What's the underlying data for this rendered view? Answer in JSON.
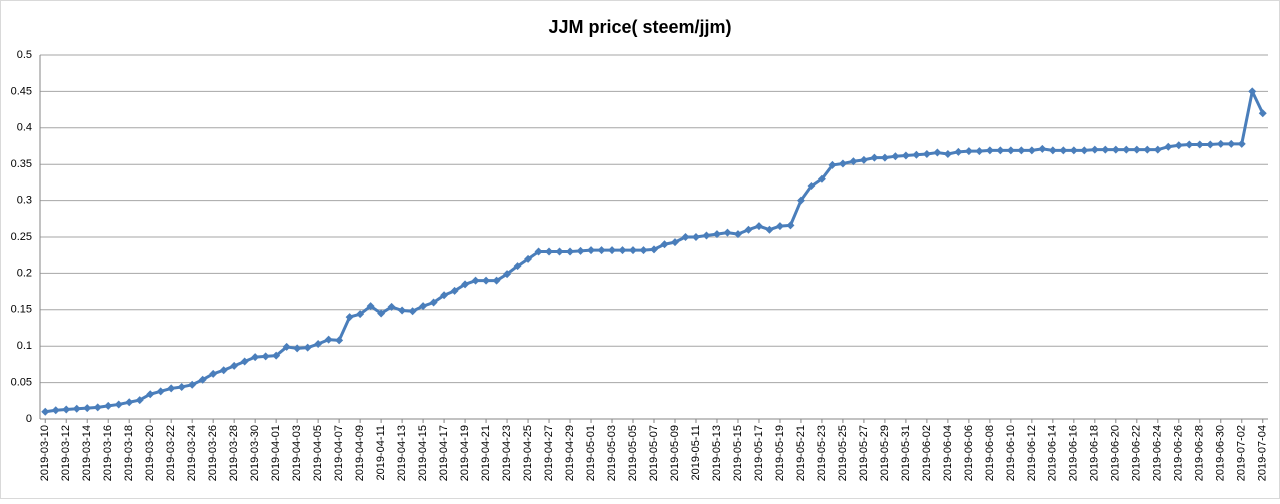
{
  "chart_data": {
    "type": "line",
    "title": "JJM price( steem/jjm)",
    "categories": [
      "2019-03-10",
      null,
      "2019-03-12",
      null,
      "2019-03-14",
      null,
      "2019-03-16",
      null,
      "2019-03-18",
      null,
      "2019-03-20",
      null,
      "2019-03-22",
      null,
      "2019-03-24",
      null,
      "2019-03-26",
      null,
      "2019-03-28",
      null,
      "2019-03-30",
      null,
      "2019-04-01",
      null,
      "2019-04-03",
      null,
      "2019-04-05",
      null,
      "2019-04-07",
      null,
      "2019-04-09",
      null,
      "2019-04-11",
      null,
      "2019-04-13",
      null,
      "2019-04-15",
      null,
      "2019-04-17",
      null,
      "2019-04-19",
      null,
      "2019-04-21",
      null,
      "2019-04-23",
      null,
      "2019-04-25",
      null,
      "2019-04-27",
      null,
      "2019-04-29",
      null,
      "2019-05-01",
      null,
      "2019-05-03",
      null,
      "2019-05-05",
      null,
      "2019-05-07",
      null,
      "2019-05-09",
      null,
      "2019-05-11",
      null,
      "2019-05-13",
      null,
      "2019-05-15",
      null,
      "2019-05-17",
      null,
      "2019-05-19",
      null,
      "2019-05-21",
      null,
      "2019-05-23",
      null,
      "2019-05-25",
      null,
      "2019-05-27",
      null,
      "2019-05-29",
      null,
      "2019-05-31",
      null,
      "2019-06-02",
      null,
      "2019-06-04",
      null,
      "2019-06-06",
      null,
      "2019-06-08",
      null,
      "2019-06-10",
      null,
      "2019-06-12",
      null,
      "2019-06-14",
      null,
      "2019-06-16",
      null,
      "2019-06-18",
      null,
      "2019-06-20",
      null,
      "2019-06-22",
      null,
      "2019-06-24",
      null,
      "2019-06-26",
      null,
      "2019-06-28",
      null,
      "2019-06-30",
      null,
      "2019-07-02",
      null,
      "2019-07-04"
    ],
    "values": [
      0.01,
      0.012,
      0.013,
      0.014,
      0.015,
      0.016,
      0.018,
      0.02,
      0.023,
      0.026,
      0.034,
      0.038,
      0.042,
      0.044,
      0.047,
      0.054,
      0.062,
      0.067,
      0.073,
      0.079,
      0.085,
      0.086,
      0.087,
      0.099,
      0.097,
      0.098,
      0.103,
      0.109,
      0.108,
      0.14,
      0.144,
      0.155,
      0.145,
      0.154,
      0.149,
      0.148,
      0.155,
      0.16,
      0.17,
      0.176,
      0.185,
      0.19,
      0.19,
      0.19,
      0.199,
      0.21,
      0.22,
      0.23,
      0.23,
      0.23,
      0.23,
      0.231,
      0.232,
      0.232,
      0.232,
      0.232,
      0.232,
      0.232,
      0.233,
      0.24,
      0.243,
      0.25,
      0.25,
      0.252,
      0.254,
      0.256,
      0.254,
      0.26,
      0.265,
      0.26,
      0.265,
      0.266,
      0.3,
      0.32,
      0.33,
      0.349,
      0.351,
      0.354,
      0.356,
      0.359,
      0.359,
      0.361,
      0.362,
      0.363,
      0.364,
      0.366,
      0.364,
      0.367,
      0.368,
      0.368,
      0.369,
      0.369,
      0.369,
      0.369,
      0.369,
      0.371,
      0.369,
      0.369,
      0.369,
      0.369,
      0.37,
      0.37,
      0.37,
      0.37,
      0.37,
      0.37,
      0.37,
      0.374,
      0.376,
      0.377,
      0.377,
      0.377,
      0.378,
      0.378,
      0.378,
      0.45,
      0.42
    ],
    "color": "#4a7ebb",
    "ylim": [
      0,
      0.5
    ],
    "yticks": [
      0,
      0.05,
      0.1,
      0.15,
      0.2,
      0.25,
      0.3,
      0.35,
      0.4,
      0.45,
      0.5
    ],
    "grid": true
  }
}
